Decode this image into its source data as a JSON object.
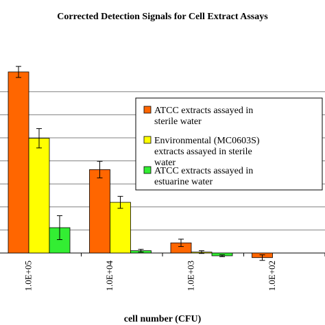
{
  "chart_data": {
    "type": "bar",
    "title": "Corrected Detection Signals for Cell Extract Assays",
    "xlabel": "cell number (CFU)",
    "ylabel": "",
    "categories": [
      "1.0E+05",
      "1.0E+04",
      "1.0E+03",
      "1.0E+02"
    ],
    "ylim": [
      -0.2,
      3.6
    ],
    "y_gridlines": [
      0,
      0.5,
      1.0,
      1.5,
      2.0,
      2.5,
      3.0,
      3.5
    ],
    "grid": "horizontal",
    "legend_position": "right",
    "series": [
      {
        "name": "ATCC extracts assayed in sterile water",
        "color": "#FF6600",
        "values": [
          3.93,
          1.81,
          0.22,
          -0.1
        ],
        "errors": [
          0.12,
          0.18,
          0.08,
          0.06
        ]
      },
      {
        "name": "Environmental (MC0603S) extracts assayed in sterile water",
        "color": "#FFFF00",
        "values": [
          2.49,
          1.1,
          0.02,
          null
        ],
        "errors": [
          0.21,
          0.13,
          0.03,
          null
        ]
      },
      {
        "name": "ATCC extracts assayed in estuarine water",
        "color": "#33EE33",
        "values": [
          0.55,
          0.05,
          -0.06,
          null
        ],
        "errors": [
          0.26,
          0.03,
          0.02,
          null
        ]
      }
    ]
  }
}
